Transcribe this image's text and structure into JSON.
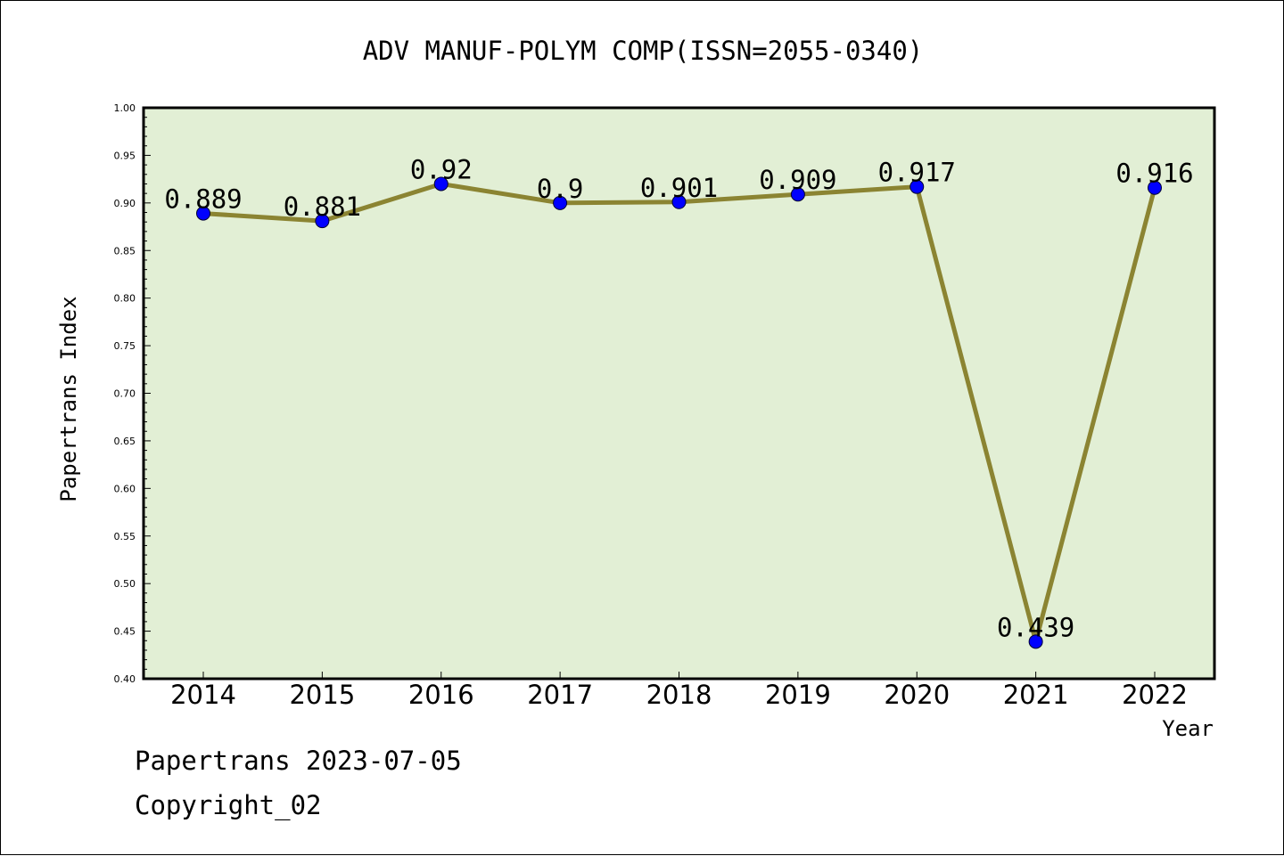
{
  "chart_data": {
    "type": "line",
    "title": "ADV MANUF-POLYM COMP(ISSN=2055-0340)",
    "xlabel": "Year",
    "ylabel": "Papertrans Index",
    "categories": [
      "2014",
      "2015",
      "2016",
      "2017",
      "2018",
      "2019",
      "2020",
      "2021",
      "2022"
    ],
    "series": [
      {
        "values": [
          0.889,
          0.881,
          0.92,
          0.9,
          0.901,
          0.909,
          0.917,
          0.439,
          0.916
        ],
        "labels": [
          "0.889",
          "0.881",
          "0.92",
          "0.9",
          "0.901",
          "0.909",
          "0.917",
          "0.439",
          "0.916"
        ]
      }
    ],
    "ylim": [
      0.4,
      1.0
    ],
    "yticks": [
      "0.40",
      "0.45",
      "0.50",
      "0.55",
      "0.60",
      "0.65",
      "0.70",
      "0.75",
      "0.80",
      "0.85",
      "0.90",
      "0.95",
      "1.00"
    ],
    "grid": false,
    "colors": {
      "plot_background": "#e2efd5",
      "line": "#8b8432",
      "marker": "#0000ff"
    }
  },
  "footer": {
    "source": "Papertrans 2023-07-05",
    "copyright": "Copyright_02"
  }
}
